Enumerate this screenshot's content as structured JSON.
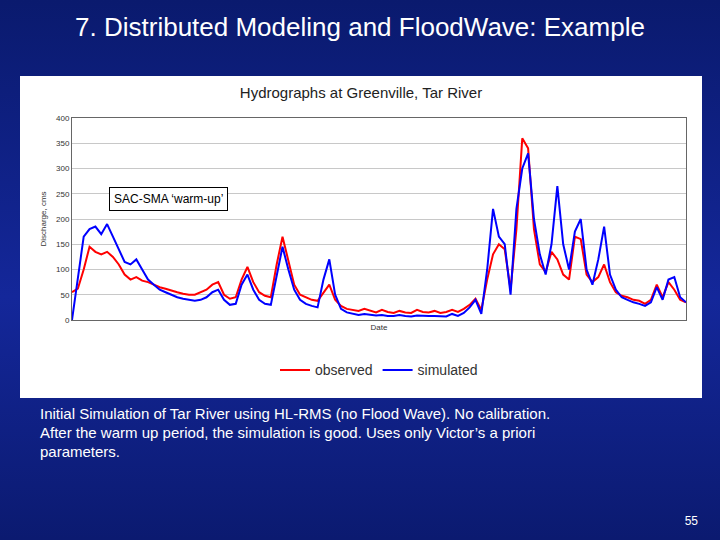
{
  "slide": {
    "title": "7. Distributed Modeling and FloodWave: Example",
    "caption": [
      "Initial Simulation of Tar River using HL-RMS (no Flood Wave). No calibration.",
      "After the warm up period, the simulation is good.  Uses only Victor’s a priori",
      "parameters."
    ],
    "page": 55
  },
  "chart_data": {
    "type": "line",
    "title": "Hydrographs at Greenville, Tar River",
    "x_label": "Date",
    "y_label": "Discharge, cms",
    "annotations": [
      {
        "text": "SAC-SMA ‘warm-up’"
      }
    ],
    "x": [
      0,
      1,
      2,
      3,
      4,
      5,
      6,
      7,
      8,
      9,
      10,
      11,
      12,
      13,
      14,
      15,
      16,
      17,
      18,
      19,
      20,
      21,
      22,
      23,
      24,
      25,
      26,
      27,
      28,
      29,
      30,
      31,
      32,
      33,
      34,
      35,
      36,
      37,
      38,
      39,
      40,
      41,
      42,
      43,
      44,
      45,
      46,
      47,
      48,
      49,
      50,
      51,
      52,
      53,
      54,
      55,
      56,
      57,
      58,
      59,
      60,
      61,
      62,
      63,
      64,
      65,
      66,
      67,
      68,
      69,
      70,
      71,
      72,
      73,
      74,
      75,
      76,
      77,
      78,
      79,
      80,
      81,
      82,
      83,
      84,
      85,
      86,
      87,
      88,
      89,
      90,
      91,
      92,
      93,
      94,
      95,
      96,
      97,
      98,
      99,
      100,
      101,
      102,
      103,
      104,
      105
    ],
    "series": [
      {
        "name": "observed",
        "color": "#ff0000",
        "values": [
          55,
          62,
          100,
          145,
          135,
          130,
          135,
          125,
          110,
          90,
          80,
          85,
          78,
          75,
          70,
          65,
          62,
          58,
          55,
          52,
          50,
          50,
          55,
          60,
          70,
          75,
          50,
          42,
          45,
          80,
          105,
          75,
          55,
          48,
          45,
          110,
          165,
          120,
          70,
          50,
          45,
          40,
          38,
          55,
          70,
          40,
          28,
          22,
          20,
          18,
          22,
          18,
          15,
          20,
          16,
          14,
          18,
          15,
          14,
          20,
          16,
          15,
          18,
          14,
          16,
          20,
          16,
          22,
          30,
          42,
          20,
          80,
          130,
          150,
          140,
          60,
          180,
          360,
          340,
          180,
          110,
          95,
          135,
          120,
          90,
          80,
          165,
          160,
          90,
          75,
          85,
          110,
          75,
          55,
          48,
          45,
          40,
          38,
          32,
          40,
          70,
          45,
          75,
          60,
          40,
          35
        ]
      },
      {
        "name": "simulated",
        "color": "#0000ff",
        "values": [
          0,
          80,
          165,
          180,
          185,
          170,
          190,
          165,
          140,
          115,
          110,
          120,
          100,
          80,
          70,
          60,
          55,
          50,
          45,
          42,
          40,
          38,
          40,
          45,
          55,
          60,
          40,
          30,
          32,
          70,
          90,
          60,
          40,
          32,
          30,
          90,
          145,
          100,
          60,
          40,
          32,
          28,
          25,
          80,
          120,
          50,
          22,
          15,
          12,
          10,
          12,
          10,
          9,
          10,
          8,
          8,
          10,
          8,
          7,
          9,
          8,
          8,
          8,
          7,
          7,
          12,
          8,
          14,
          25,
          40,
          12,
          100,
          220,
          165,
          150,
          50,
          220,
          300,
          330,
          200,
          130,
          90,
          150,
          265,
          150,
          100,
          175,
          200,
          100,
          70,
          120,
          185,
          90,
          60,
          45,
          40,
          35,
          32,
          28,
          35,
          65,
          40,
          80,
          85,
          45,
          35
        ]
      }
    ],
    "xlim": [
      0,
      105
    ],
    "ylim": [
      0,
      400
    ],
    "yticks": [
      0,
      50,
      100,
      150,
      200,
      250,
      300,
      350,
      400
    ],
    "grid": true,
    "legend": "bottom",
    "tick_labels": "y"
  }
}
